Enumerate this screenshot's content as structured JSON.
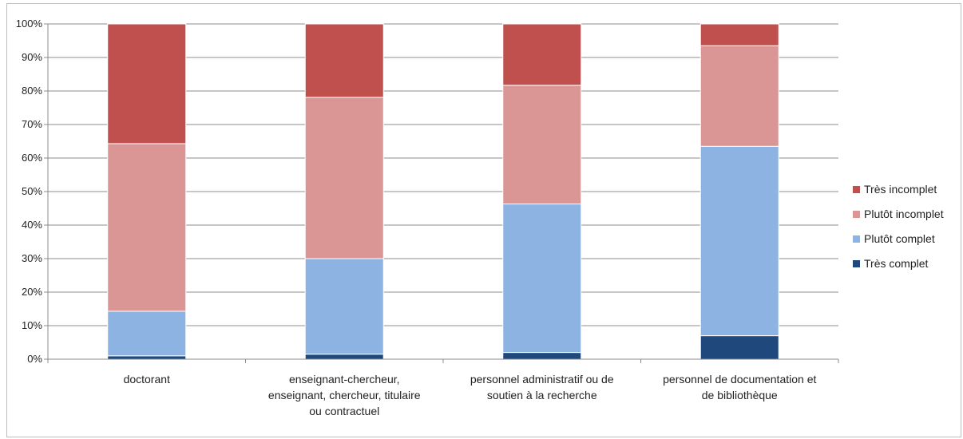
{
  "chart_data": {
    "type": "bar",
    "stacked": "percent",
    "categories": [
      [
        "doctorant"
      ],
      [
        "enseignant-chercheur,",
        "enseignant, chercheur, titulaire",
        "ou contractuel"
      ],
      [
        "personnel administratif ou de",
        "soutien à la recherche"
      ],
      [
        "personnel de documentation et",
        "de bibliothèque"
      ]
    ],
    "series": [
      {
        "name": "Très complet",
        "color": "#1f497d",
        "values": [
          1,
          1.5,
          2,
          7
        ]
      },
      {
        "name": "Plutôt complet",
        "color": "#8db3e2",
        "values": [
          13.3,
          28.5,
          44.3,
          56.5
        ]
      },
      {
        "name": "Plutôt incomplet",
        "color": "#d99694",
        "values": [
          50,
          48.1,
          35.4,
          30
        ]
      },
      {
        "name": "Très incomplet",
        "color": "#c0504d",
        "values": [
          35.7,
          21.9,
          18.3,
          6.5
        ]
      }
    ],
    "yticks": [
      "0%",
      "10%",
      "20%",
      "30%",
      "40%",
      "50%",
      "60%",
      "70%",
      "80%",
      "90%",
      "100%"
    ],
    "ylim": [
      0,
      100
    ],
    "grid": true,
    "legend": "right",
    "legend_order": [
      "Très incomplet",
      "Plutôt incomplet",
      "Plutôt complet",
      "Très complet"
    ],
    "title": "",
    "xlabel": "",
    "ylabel": ""
  }
}
